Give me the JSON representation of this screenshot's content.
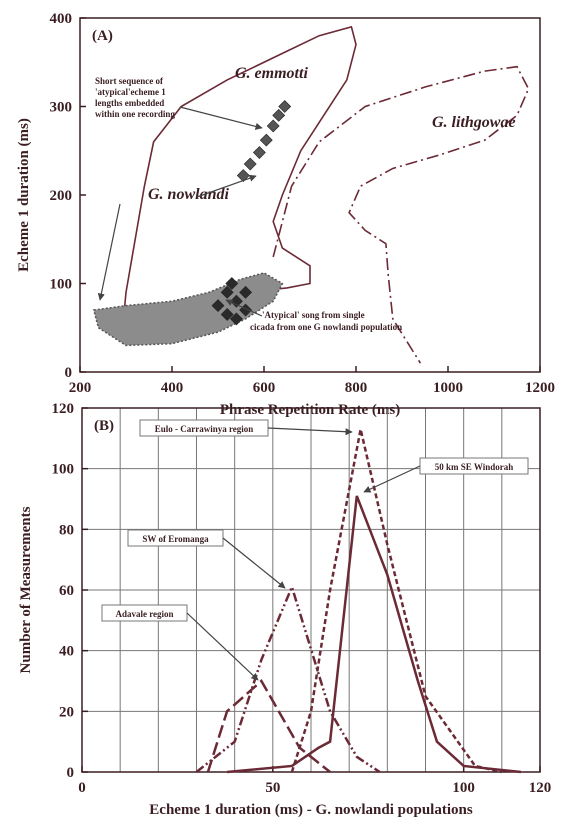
{
  "chart_data": [
    {
      "type": "scatter",
      "title": "(A)",
      "xlabel": "Phrase Repetition Rate (ms)",
      "ylabel": "Echeme 1 duration (ms)",
      "xlim": [
        200,
        1200
      ],
      "ylim": [
        0,
        400
      ],
      "xticks": [
        200,
        400,
        600,
        800,
        1000,
        1200
      ],
      "yticks": [
        0,
        100,
        200,
        300,
        400
      ],
      "series": [
        {
          "name": "G. emmotti",
          "style": "solid",
          "color": "#6b2a35",
          "x": [
            290,
            300,
            320,
            340,
            360,
            420,
            520,
            640,
            720,
            790,
            800,
            780,
            730,
            680,
            640,
            620,
            640,
            700,
            700,
            650,
            560,
            480,
            400,
            290
          ],
          "values": [
            35,
            90,
            150,
            210,
            260,
            300,
            330,
            360,
            380,
            390,
            370,
            330,
            290,
            250,
            200,
            170,
            140,
            120,
            100,
            95,
            90,
            70,
            50,
            35
          ]
        },
        {
          "name": "G. lithgowae",
          "style": "dashdot",
          "color": "#6b2a35",
          "x": [
            620,
            660,
            720,
            820,
            950,
            1080,
            1150,
            1175,
            1150,
            1080,
            980,
            880,
            810,
            785,
            820,
            865,
            870,
            880,
            940
          ],
          "values": [
            130,
            210,
            260,
            300,
            322,
            340,
            345,
            320,
            290,
            262,
            245,
            230,
            210,
            180,
            160,
            145,
            110,
            60,
            10
          ]
        },
        {
          "name": "G. nowlandi",
          "style": "filled",
          "color": "#8c8c8c",
          "x": [
            230,
            300,
            400,
            480,
            550,
            600,
            640,
            620,
            560,
            500,
            400,
            300,
            240,
            230
          ],
          "values": [
            70,
            75,
            80,
            90,
            105,
            112,
            100,
            80,
            60,
            45,
            32,
            30,
            50,
            70
          ]
        },
        {
          "style": "points",
          "color": "#555555",
          "x": [
            555,
            570,
            590,
            605,
            620,
            632,
            645
          ],
          "values": [
            222,
            235,
            248,
            262,
            278,
            290,
            300
          ]
        },
        {
          "style": "points",
          "color": "#2a2a2a",
          "x": [
            500,
            520,
            540,
            560,
            520,
            540,
            560,
            530
          ],
          "values": [
            75,
            90,
            80,
            90,
            65,
            60,
            70,
            100
          ]
        }
      ],
      "annotations": [
        {
          "text": [
            "Short sequence of",
            "'atypical'echeme 1",
            "lengths embedded",
            "within one recording"
          ]
        },
        {
          "text": [
            "'Atypical' song from single",
            "cicada from one G nowlandi population"
          ]
        }
      ]
    },
    {
      "type": "line",
      "title": "(B)",
      "xlabel": "Echeme 1 duration (ms) - G. nowlandi populations",
      "ylabel": "Number of Measurements",
      "xlim": [
        0,
        120
      ],
      "ylim": [
        0,
        120
      ],
      "xticks": [
        0,
        50,
        100,
        120
      ],
      "yticks": [
        0,
        20,
        40,
        60,
        80,
        100,
        120
      ],
      "xgrid": [
        10,
        20,
        30,
        40,
        50,
        60,
        70,
        80,
        90,
        100,
        110
      ],
      "series": [
        {
          "name": "Eulo - Carrawinya region",
          "style": "shortdash",
          "color": "#6b2a35",
          "x": [
            55,
            60,
            65,
            73,
            80,
            90,
            103,
            110
          ],
          "values": [
            0,
            20,
            60,
            113,
            75,
            25,
            2,
            0
          ]
        },
        {
          "name": "50 km SE Windorah",
          "style": "solid",
          "color": "#6b2a35",
          "x": [
            38,
            55,
            62,
            65,
            72,
            80,
            88,
            93,
            100,
            115
          ],
          "values": [
            0,
            2,
            8,
            10,
            91,
            65,
            30,
            10,
            2,
            0
          ]
        },
        {
          "name": "SW of Eromanga",
          "style": "dashdotdot",
          "color": "#6b2a35",
          "x": [
            30,
            40,
            47,
            55,
            65,
            72,
            78
          ],
          "values": [
            0,
            10,
            37,
            61,
            20,
            5,
            0
          ]
        },
        {
          "name": "Adavale region",
          "style": "longdash",
          "color": "#6b2a35",
          "x": [
            33,
            38,
            47,
            57,
            65
          ],
          "values": [
            0,
            20,
            30,
            8,
            0
          ]
        }
      ]
    }
  ]
}
